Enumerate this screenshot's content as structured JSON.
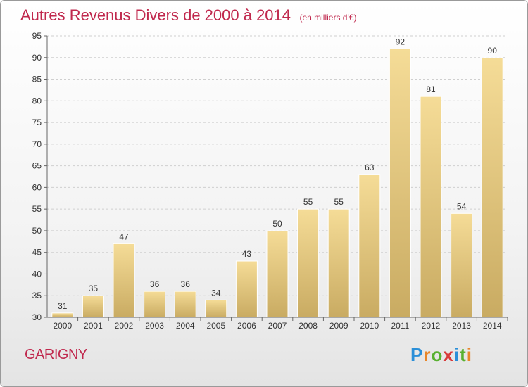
{
  "chart_data": {
    "type": "bar",
    "title": "Autres Revenus Divers de 2000 à 2014",
    "subtitle": "(en milliers d'€)",
    "categories": [
      "2000",
      "2001",
      "2002",
      "2003",
      "2004",
      "2005",
      "2006",
      "2007",
      "2008",
      "2009",
      "2010",
      "2011",
      "2012",
      "2013",
      "2014"
    ],
    "values": [
      31,
      35,
      47,
      36,
      36,
      34,
      43,
      50,
      55,
      55,
      63,
      92,
      81,
      54,
      90
    ],
    "ylim": [
      30,
      95
    ],
    "yticks": [
      30,
      35,
      40,
      45,
      50,
      55,
      60,
      65,
      70,
      75,
      80,
      85,
      90,
      95
    ],
    "grid": "horizontal dashed",
    "bar_color_top": "#f5dc97",
    "bar_color_bottom": "#c9ab62"
  },
  "location": "GARIGNY",
  "logo": {
    "letters": [
      "P",
      "r",
      "o",
      "x",
      "i",
      "t",
      "i"
    ],
    "colors": [
      "#2a8fd8",
      "#e8862a",
      "#58b030",
      "#d83a3a",
      "#2a8fd8",
      "#58b030",
      "#e8862a"
    ]
  }
}
